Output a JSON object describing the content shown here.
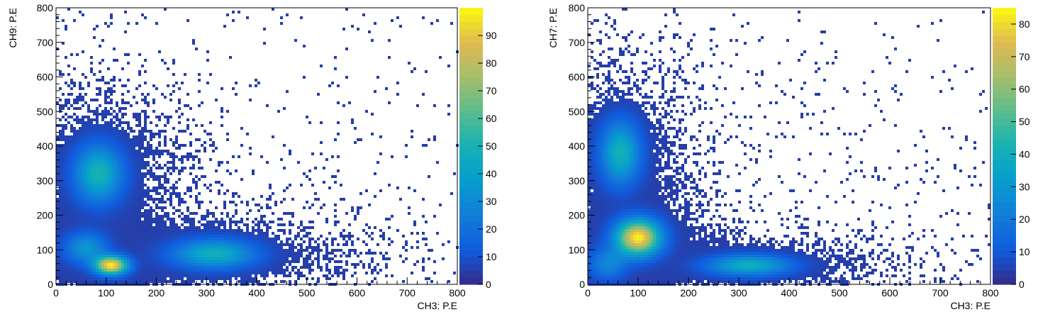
{
  "chart_data": [
    {
      "type": "heatmap",
      "xlabel": "CH3: P.E",
      "ylabel": "CH9: P.E",
      "xlim": [
        0,
        800
      ],
      "ylim": [
        0,
        800
      ],
      "x_ticks": [
        0,
        100,
        200,
        300,
        400,
        500,
        600,
        700,
        800
      ],
      "y_ticks": [
        0,
        100,
        200,
        300,
        400,
        500,
        600,
        700,
        800
      ],
      "z_range": [
        0,
        100
      ],
      "z_ticks": [
        0,
        10,
        20,
        30,
        40,
        50,
        60,
        70,
        80,
        90
      ],
      "palette": "kBird",
      "clusters": [
        {
          "x": 110,
          "y": 55,
          "sx": 22,
          "sy": 18,
          "peak": 98
        },
        {
          "x": 85,
          "y": 320,
          "sx": 32,
          "sy": 55,
          "peak": 48
        },
        {
          "x": 315,
          "y": 88,
          "sx": 55,
          "sy": 28,
          "peak": 45
        },
        {
          "x": 60,
          "y": 105,
          "sx": 28,
          "sy": 30,
          "peak": 32
        }
      ]
    },
    {
      "type": "heatmap",
      "xlabel": "CH3: P.E",
      "ylabel": "CH7: P.E",
      "xlim": [
        0,
        800
      ],
      "ylim": [
        0,
        800
      ],
      "x_ticks": [
        0,
        100,
        200,
        300,
        400,
        500,
        600,
        700,
        800
      ],
      "y_ticks": [
        0,
        100,
        200,
        300,
        400,
        500,
        600,
        700,
        800
      ],
      "z_range": [
        0,
        85
      ],
      "z_ticks": [
        0,
        10,
        20,
        30,
        40,
        50,
        60,
        70,
        80
      ],
      "palette": "kBird",
      "clusters": [
        {
          "x": 100,
          "y": 135,
          "sx": 30,
          "sy": 35,
          "peak": 84
        },
        {
          "x": 65,
          "y": 380,
          "sx": 26,
          "sy": 60,
          "peak": 40
        },
        {
          "x": 320,
          "y": 55,
          "sx": 55,
          "sy": 20,
          "peak": 38
        },
        {
          "x": 40,
          "y": 60,
          "sx": 25,
          "sy": 30,
          "peak": 22
        }
      ]
    }
  ]
}
